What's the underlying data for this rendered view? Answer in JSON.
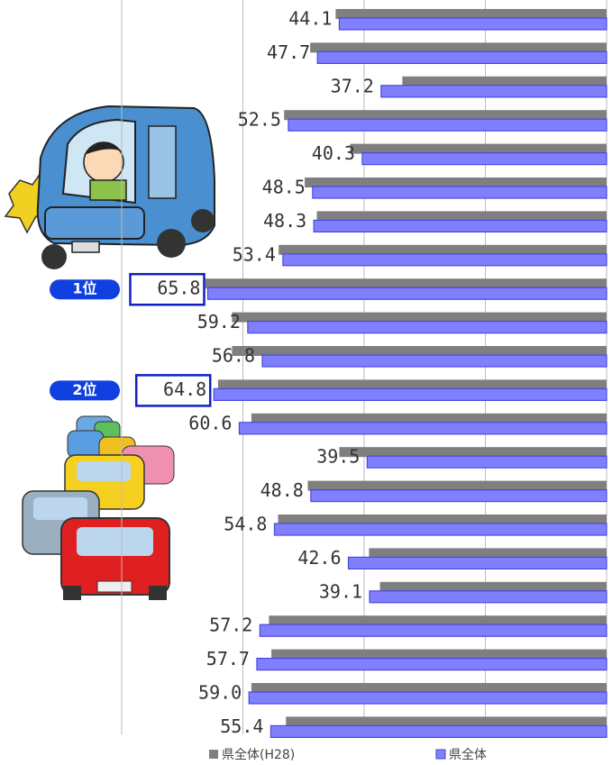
{
  "chart_data": {
    "type": "bar",
    "orientation": "horizontal",
    "x_reversed": true,
    "grid": true,
    "xlim": [
      0,
      80
    ],
    "xticks": [
      0,
      20,
      40,
      60,
      80
    ],
    "series": [
      {
        "name": "県全体(H28)",
        "color": "#7f7f7f",
        "values": [
          44.7,
          48.9,
          33.7,
          53.2,
          42.3,
          49.8,
          47.8,
          54.1,
          66.2,
          61.8,
          61.8,
          64.1,
          58.6,
          44.1,
          49.3,
          54.2,
          39.2,
          37.4,
          55.7,
          55.3,
          58.6,
          52.9
        ]
      },
      {
        "name": "県全体",
        "color": "#8080ff",
        "values": [
          44.1,
          47.7,
          37.2,
          52.5,
          40.3,
          48.5,
          48.3,
          53.4,
          65.8,
          59.2,
          56.8,
          64.8,
          60.6,
          39.5,
          48.8,
          54.8,
          42.6,
          39.1,
          57.2,
          57.7,
          59.0,
          55.4
        ],
        "value_labels": [
          "44.1",
          "47.7",
          "37.2",
          "52.5",
          "40.3",
          "48.5",
          "48.3",
          "53.4",
          "65.8",
          "59.2",
          "56.8",
          "64.8",
          "60.6",
          "39.5",
          "48.8",
          "54.8",
          "42.6",
          "39.1",
          "57.2",
          "57.7",
          "59.0",
          "55.4"
        ]
      }
    ],
    "annotations": [
      "1位",
      "2位"
    ]
  }
}
